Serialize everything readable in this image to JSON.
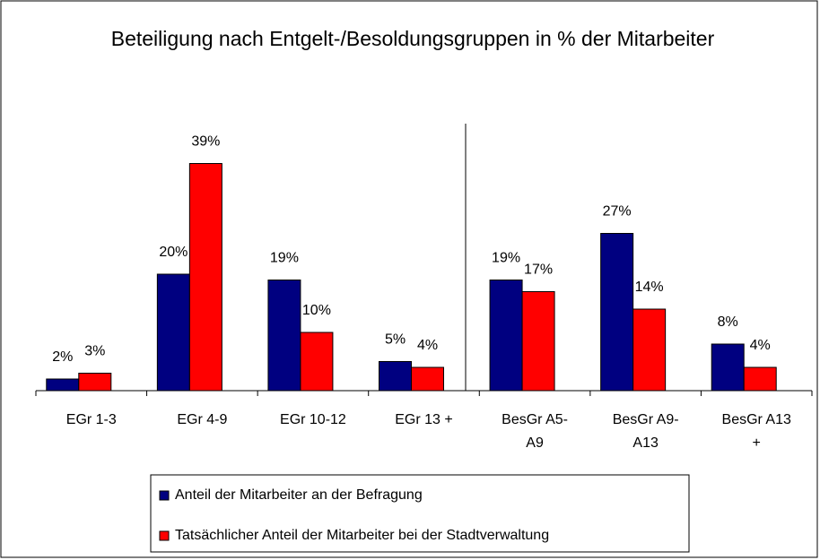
{
  "chart_data": {
    "type": "bar",
    "title": "Beteiligung nach Entgelt-/Besoldungsgruppen in % der Mitarbeiter",
    "categories": [
      "EGr 1-3",
      "EGr 4-9",
      "EGr 10-12",
      "EGr 13 +",
      "BesGr A5-A9",
      "BesGr A9-A13",
      "BesGr A13 +"
    ],
    "series": [
      {
        "name": "Anteil der Mitarbeiter an der Befragung",
        "color": "#000080",
        "values": [
          2,
          20,
          19,
          5,
          19,
          27,
          8
        ],
        "value_labels": [
          "2%",
          "20%",
          "19%",
          "5%",
          "19%",
          "27%",
          "8%"
        ]
      },
      {
        "name": "Tatsächlicher Anteil der Mitarbeiter bei der Stadtverwaltung",
        "color": "#ff0000",
        "values": [
          3,
          39,
          10,
          4,
          17,
          14,
          4
        ],
        "value_labels": [
          "3%",
          "39%",
          "10%",
          "4%",
          "17%",
          "14%",
          "4%"
        ]
      }
    ],
    "ylim": [
      0,
      40
    ]
  }
}
